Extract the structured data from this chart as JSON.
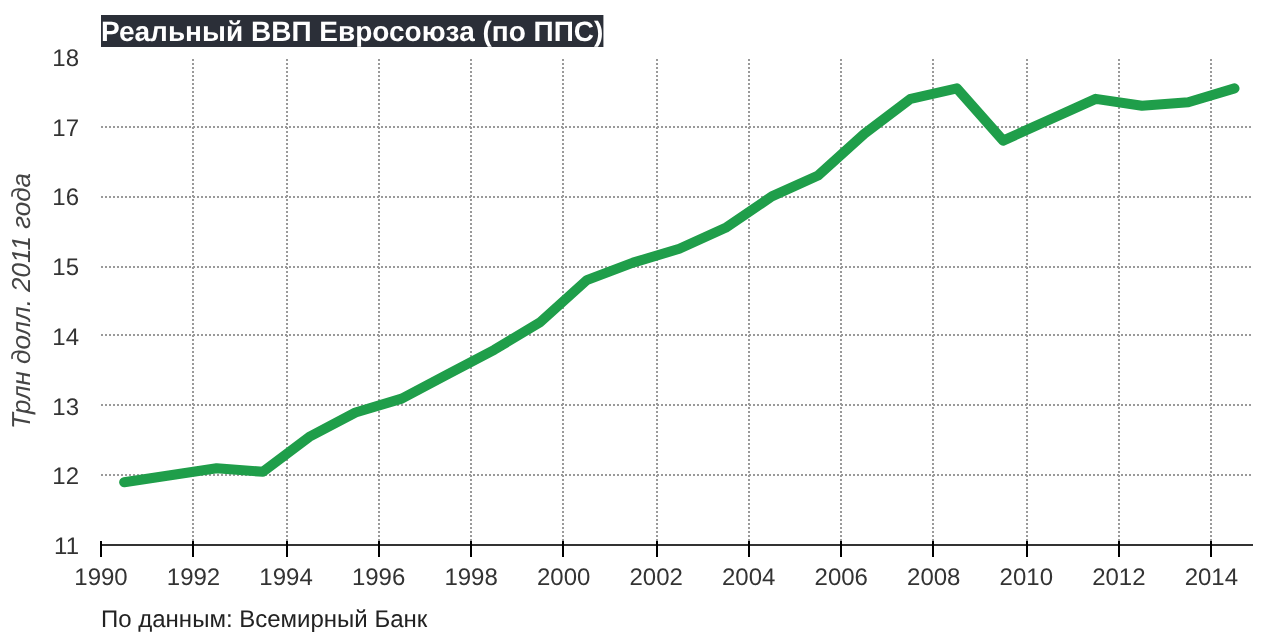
{
  "chart_data": {
    "type": "line",
    "title": "Реальный ВВП Евросоюза (по ППС)",
    "ylabel": "Трлн долл. 2011 года",
    "x": [
      1990.5,
      1991.5,
      1992.5,
      1993.5,
      1994.5,
      1995.5,
      1996.5,
      1997.5,
      1998.5,
      1999.5,
      2000.5,
      2001.5,
      2002.5,
      2003.5,
      2004.5,
      2005.5,
      2006.5,
      2007.5,
      2008.5,
      2009.5,
      2010.5,
      2011.5,
      2012.5,
      2013.5,
      2014.5
    ],
    "series": [
      {
        "color": "#1f9e4a",
        "values": [
          11.9,
          12.0,
          12.1,
          12.05,
          12.55,
          12.9,
          13.1,
          13.45,
          13.8,
          14.2,
          14.8,
          15.05,
          15.25,
          15.55,
          16.0,
          16.3,
          16.9,
          17.4,
          17.55,
          16.8,
          17.1,
          17.4,
          17.3,
          17.35,
          17.55
        ]
      }
    ],
    "xlim": [
      1990,
      2014.9
    ],
    "ylim": [
      11,
      18
    ],
    "xticks": [
      1990,
      1992,
      1994,
      1996,
      1998,
      2000,
      2002,
      2004,
      2006,
      2008,
      2010,
      2012,
      2014
    ],
    "yticks": [
      11,
      12,
      13,
      14,
      15,
      16,
      17,
      18
    ],
    "grid": true,
    "annotations": [
      "По данным: Всемирный Банк"
    ]
  }
}
